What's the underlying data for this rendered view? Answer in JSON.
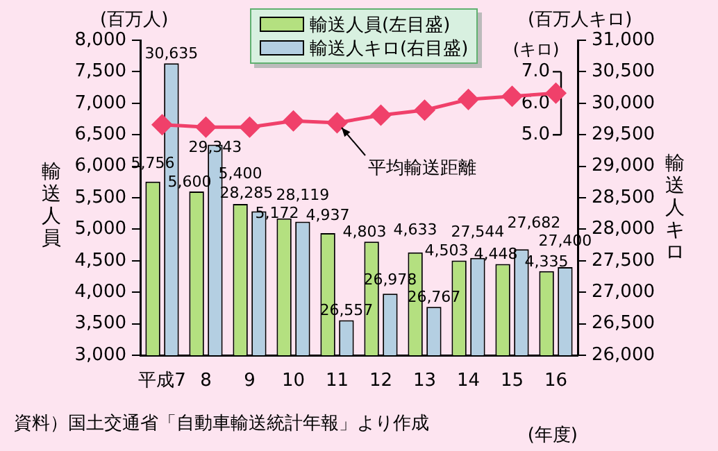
{
  "chart_data": {
    "type": "bar",
    "categories": [
      "平成7",
      "8",
      "9",
      "10",
      "11",
      "12",
      "13",
      "14",
      "15",
      "16"
    ],
    "xlabel": "(年度)",
    "ylabel": "輸送人員",
    "y2label": "輸送人キロ",
    "y3label": "(キロ)",
    "series": [
      {
        "name": "輸送人員(左目盛)",
        "color": "#b4e080",
        "values": [
          5756,
          5600,
          5400,
          5172,
          4937,
          4803,
          4633,
          4503,
          4448,
          4335
        ],
        "value_labels": [
          "5,756",
          "5,600",
          "5,400",
          "5,172",
          "4,937",
          "4,803",
          "4,633",
          "4,503",
          "4,448",
          "4,335"
        ]
      },
      {
        "name": "輸送人キロ(右目盛)",
        "color": "#b4cfe2",
        "axis": "y2",
        "values": [
          30635,
          29343,
          28285,
          28119,
          26557,
          26978,
          26767,
          27544,
          27682,
          27400
        ],
        "value_labels": [
          "30,635",
          "29,343",
          "28,285",
          "28,119",
          "26,557",
          "26,978",
          "26,767",
          "27,544",
          "27,682",
          "27,400"
        ]
      },
      {
        "name": "平均輸送距離",
        "type": "line",
        "axis": "y3",
        "color": "#f0406a",
        "values": [
          5.32,
          5.24,
          5.24,
          5.44,
          5.38,
          5.62,
          5.78,
          6.12,
          6.22,
          6.32
        ]
      }
    ],
    "ylim": [
      3000,
      8000
    ],
    "yticks": [
      {
        "value": 3000,
        "label": "3,000"
      },
      {
        "value": 3500,
        "label": "3,500"
      },
      {
        "value": 4000,
        "label": "4,000"
      },
      {
        "value": 4500,
        "label": "4,500"
      },
      {
        "value": 5000,
        "label": "5,000"
      },
      {
        "value": 5500,
        "label": "5,500"
      },
      {
        "value": 6000,
        "label": "6,000"
      },
      {
        "value": 6500,
        "label": "6,500"
      },
      {
        "value": 7000,
        "label": "7,000"
      },
      {
        "value": 7500,
        "label": "7,500"
      },
      {
        "value": 8000,
        "label": "8,000"
      }
    ],
    "y2lim": [
      26000,
      31000
    ],
    "y2ticks": [
      {
        "value": 26000,
        "label": "26,000"
      },
      {
        "value": 26500,
        "label": "26,500"
      },
      {
        "value": 27000,
        "label": "27,000"
      },
      {
        "value": 27500,
        "label": "27,500"
      },
      {
        "value": 28000,
        "label": "28,000"
      },
      {
        "value": 28500,
        "label": "28,500"
      },
      {
        "value": 29000,
        "label": "29,000"
      },
      {
        "value": 29500,
        "label": "29,500"
      },
      {
        "value": 30000,
        "label": "30,000"
      },
      {
        "value": 30500,
        "label": "30,500"
      },
      {
        "value": 31000,
        "label": "31,000"
      }
    ],
    "y3lim": [
      -2,
      8
    ],
    "y3ticks": [
      {
        "value": 5,
        "label": "5.0"
      },
      {
        "value": 6,
        "label": "6.0"
      },
      {
        "value": 7,
        "label": "7.0"
      }
    ],
    "legend": "top",
    "grid": false,
    "marker": "diamond",
    "line_style": "solid",
    "annotations": [
      "(百万人)",
      "(百万人キロ)",
      "資料）国土交通省「自動車輸送統計年報」より作成"
    ]
  }
}
